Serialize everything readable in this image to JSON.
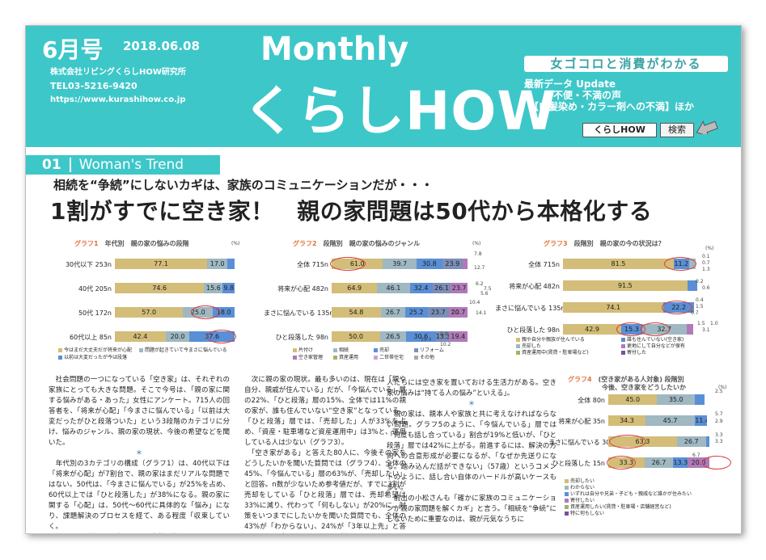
{
  "header": {
    "issue": "6月号",
    "date": "2018.06.08",
    "company": "株式会社リビングくらしHOW研究所",
    "tel": "TEL03-5216-9420",
    "url": "https://www.kurashihow.co.jp",
    "monthly": "Monthly",
    "logo": "くらしHOW",
    "tagline": "女ゴコロと消費がわかる",
    "update_lines": "最新データ Update\n　　　不便・不満の声\n　【白髪染め・カラー剤への不満】ほか",
    "search_value": "くらしHOW",
    "search_button": "検索"
  },
  "section": {
    "number": "01",
    "title": "Woman's Trend"
  },
  "subtitle": "相続を“争続”にしないカギは、家族のコミュニケーションだが・・・",
  "headline": "1割がすでに空き家！　親の家問題は50代から本格化する",
  "graph1": {
    "num": "グラフ1",
    "label": "年代別　親の家の悩みの段階",
    "unit": "(%)",
    "rows": [
      {
        "label": "30代以下 253n",
        "values": [
          "77.1",
          "17.0",
          "5.9"
        ]
      },
      {
        "label": "40代 205n",
        "values": [
          "74.6",
          "15.6",
          "9.8"
        ]
      },
      {
        "label": "50代 172n",
        "values": [
          "57.0",
          "25.0",
          "18.0"
        ]
      },
      {
        "label": "60代以上 85n",
        "values": [
          "42.4",
          "20.0",
          "37.6"
        ]
      }
    ],
    "legend": [
      "今はまだ大丈夫だが将来が心配",
      "問題が起きていて今まさに悩んでいる",
      "以前は大変だったが今は段落"
    ]
  },
  "graph2": {
    "num": "グラフ2",
    "label": "段階別　親の家の悩みのジャンル",
    "unit": "(%)",
    "rows": [
      {
        "label": "全体 715n",
        "values": [
          "61.0",
          "39.7",
          "30.8",
          "23.9",
          "6.0"
        ]
      },
      {
        "label": "将来が心配 482n",
        "values": [
          "64.9",
          "46.1",
          "32.4",
          "26.1",
          "23.7"
        ]
      },
      {
        "label": "まさに悩んでいる 135n",
        "values": [
          "54.8",
          "26.7",
          "25.2",
          "23.7",
          "20.7"
        ]
      },
      {
        "label": "ひと段落した 98n",
        "values": [
          "50.0",
          "26.5",
          "30.6",
          "13.3",
          "19.4"
        ]
      }
    ],
    "extras": [
      "7.8",
      "12.7",
      "6.2",
      "7.5",
      "5.6",
      "10.4",
      "3.7",
      "14.1",
      "19.4",
      "2.0",
      "10.2"
    ],
    "legend": [
      "片付け",
      "相続",
      "売却",
      "リフォーム",
      "空き家管理",
      "資産運用",
      "二世帯住宅",
      "その他"
    ]
  },
  "graph3": {
    "num": "グラフ3",
    "label": "段階別　親の家の今の状況は？",
    "unit": "(%)",
    "rows": [
      {
        "label": "全体 715n",
        "values": [
          "81.5",
          "11.2",
          "5.2"
        ]
      },
      {
        "label": "将来が心配 482n",
        "values": [
          "91.5",
          "7.3"
        ]
      },
      {
        "label": "まさに悩んでいる 135n",
        "values": [
          "74.1",
          "22.2"
        ]
      },
      {
        "label": "ひと段落した 98n",
        "values": [
          "42.9",
          "15.3",
          "32.7",
          "5.1"
        ]
      }
    ],
    "extras": [
      "0.1",
      "0.7",
      "1.3",
      "0.2",
      "0.6",
      "0.4",
      "1.5",
      "0.7",
      "1.5",
      "1.0",
      "3.1"
    ],
    "legend": [
      "親や自分や親族が住んでいる",
      "誰も住んでいない(空き家)",
      "売却した",
      "更地にして自分などが保有",
      "資産運用中(賃貸・駐車場など)",
      "寄付した"
    ]
  },
  "graph4": {
    "num": "グラフ4",
    "label": "(空き家がある人対象) 段階別",
    "label2": "今後、空き家をどうしたいか",
    "unit": "(%)",
    "rows": [
      {
        "label": "全体 80n",
        "values": [
          "45.0",
          "35.0",
          "8.8"
        ]
      },
      {
        "label": "将来が心配 35n",
        "values": [
          "34.3",
          "45.7",
          "11.4"
        ]
      },
      {
        "label": "まさに悩んでいる 30 n",
        "values": [
          "63.3",
          "26.7",
          "3.3"
        ]
      },
      {
        "label": "ひと段落した 15n",
        "values": [
          "33.3",
          "26.7",
          "13.3",
          "20.0"
        ]
      }
    ],
    "extras": [
      "2.5",
      "5.7",
      "2.9",
      "3.3",
      "3.3",
      "6.7"
    ],
    "legend": [
      "売却したい",
      "わからない",
      "いずれは自分や兄弟・子ども・親戚など誰かが住みたい",
      "寄付したい",
      "資産運用したい(賃貸・駐車場・店舗経営など)",
      "特に何もしない"
    ]
  },
  "col1": [
    "　社会問題の一つになっている「空き家」は、それぞれの家族にとっても大きな問題。そこで今号は、「親の家に関する悩みがある・あった」女性にアンケート。715人の回答者を、「将来が心配」「今まさに悩んでいる」「以前は大変だったがひと段落ついた」という3段階のカテゴリに分け、悩みのジャンル、親の家の現状、今後の希望などを聞いた。",
    "＊",
    "　年代別の3カテゴリの構成（グラフ1）は、40代以下は「将来が心配」が7割台で、親の家はまだリアルな問題ではない。50代は、「今まさに悩んでいる」が25%を占め、60代以上では「ひと段落した」が38%になる。親の家に関する「心配」は、50代〜60代に具体的な「悩み」になり、課題解決のプロセスを経て、ある程度「収束していく。",
    "　では、その悩みとは何だろう。複数回答で聞いた"
  ],
  "col2": [
    "　次に親の家の現状。最も多いのは、現在は「親や自分、親戚が住んでいる」だが、「今悩んでいる」層の22%、「ひと段落」層の15%、全体では11%の親の家が、誰も住んでいない“空き家”となっている。「ひと段落」層では、「売却した」人が33%を占め、「資産・駐車場など資産運用中」は3%と、運用している人は少ない（グラフ3）。",
    "　「空き家がある」と答えた80人に、今後その家をどうしたいかを聞いた質問では（グラフ4）、全体の45%、「今悩んでいる」層の63%が、「売却したい」と回答。n数が少ないため参考値だが、すでに3割が売却をしている「ひと段落」層では、売却希望は33%に減り、代わって「何もしない」が20%に。対策をいつまでにしたいかを聞いた質問でも、全体の43%が「わからない」、24%が「3年以上先」と答えるなど、手をつけかねている様子だ。"
  ],
  "col3": [
    "人たちには空き家を置いておける生活力がある。空き家の悩みは“持てる人の悩み”といえる」。",
    "＊",
    "　親の家は、親本人や家族と共に考えなければならない問題。グラフ5のように、「今悩んでいる」層では「何度も話し合っている」割合が19%と低いが、「ひと段落」層では42%に上がる。前進するには、解決の方向への合意形成が必要になるが、「なぜか先送りになる。踏み込んだ話ができない」（57歳）というコメントのように、話し合い自体のハードルが高いケースも多い。",
    "　前出の小松さんも「確かに家族のコミュニケーションが親の家問題を解くカギ」と言う。「相続を“争続”にしないために重要なのは、親が元気なうちに"
  ]
}
